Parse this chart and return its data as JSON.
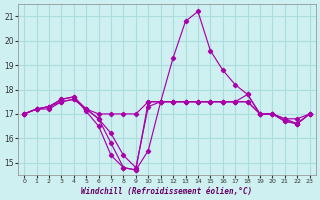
{
  "xlabel": "Windchill (Refroidissement éolien,°C)",
  "ylabel": "",
  "background_color": "#cef0f0",
  "grid_color": "#aadddd",
  "line_color": "#aa00aa",
  "xlim": [
    -0.5,
    23.5
  ],
  "ylim": [
    14.5,
    21.5
  ],
  "yticks": [
    15,
    16,
    17,
    18,
    19,
    20,
    21
  ],
  "xticks": [
    0,
    1,
    2,
    3,
    4,
    5,
    6,
    7,
    8,
    9,
    10,
    11,
    12,
    13,
    14,
    15,
    16,
    17,
    18,
    19,
    20,
    21,
    22,
    23
  ],
  "series": [
    {
      "x": [
        0,
        1,
        2,
        3,
        4,
        5,
        6,
        7,
        8,
        9,
        10,
        11,
        12,
        13,
        14,
        15,
        16,
        17,
        18,
        19,
        20,
        21,
        22,
        23
      ],
      "y": [
        17.0,
        17.2,
        17.2,
        17.5,
        17.6,
        17.2,
        16.8,
        15.8,
        14.8,
        14.7,
        17.5,
        17.5,
        17.5,
        17.5,
        17.5,
        17.5,
        17.5,
        17.5,
        17.5,
        17.0,
        17.0,
        16.8,
        16.6,
        17.0
      ]
    },
    {
      "x": [
        0,
        1,
        2,
        3,
        4,
        5,
        6,
        7,
        8,
        9,
        10,
        11,
        12,
        13,
        14,
        15,
        16,
        17,
        18,
        19,
        20,
        21,
        22,
        23
      ],
      "y": [
        17.0,
        17.2,
        17.3,
        17.6,
        17.7,
        17.1,
        16.5,
        15.3,
        14.8,
        14.7,
        15.5,
        17.5,
        19.3,
        20.8,
        21.2,
        19.6,
        18.8,
        18.2,
        17.8,
        17.0,
        17.0,
        16.7,
        16.6,
        17.0
      ]
    },
    {
      "x": [
        0,
        1,
        2,
        3,
        4,
        5,
        6,
        7,
        8,
        9,
        10,
        11,
        12,
        13,
        14,
        15,
        16,
        17,
        18,
        19,
        20,
        21,
        22,
        23
      ],
      "y": [
        17.0,
        17.2,
        17.3,
        17.6,
        17.7,
        17.2,
        17.0,
        17.0,
        17.0,
        17.0,
        17.5,
        17.5,
        17.5,
        17.5,
        17.5,
        17.5,
        17.5,
        17.5,
        17.5,
        17.0,
        17.0,
        16.8,
        16.8,
        17.0
      ]
    },
    {
      "x": [
        0,
        1,
        2,
        3,
        4,
        5,
        6,
        7,
        8,
        9,
        10,
        11,
        12,
        13,
        14,
        15,
        16,
        17,
        18,
        19,
        20,
        21,
        22,
        23
      ],
      "y": [
        17.0,
        17.2,
        17.3,
        17.5,
        17.6,
        17.2,
        16.8,
        16.2,
        15.3,
        14.8,
        17.3,
        17.5,
        17.5,
        17.5,
        17.5,
        17.5,
        17.5,
        17.5,
        17.8,
        17.0,
        17.0,
        16.7,
        16.6,
        17.0
      ]
    }
  ]
}
